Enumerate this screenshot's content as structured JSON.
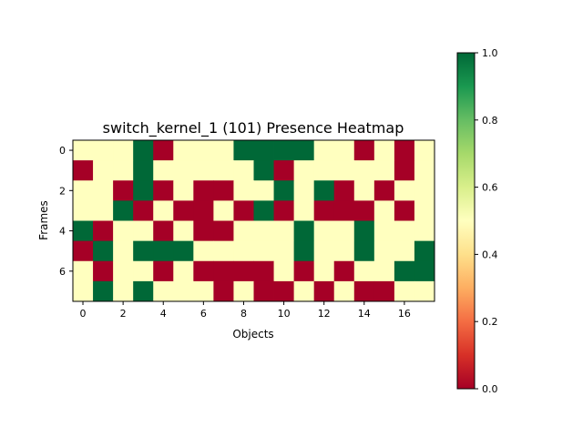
{
  "chart_data": {
    "type": "heatmap",
    "title": "switch_kernel_1 (101) Presence Heatmap",
    "xlabel": "Objects",
    "ylabel": "Frames",
    "x_ticks": [
      0,
      2,
      4,
      6,
      8,
      10,
      12,
      14,
      16
    ],
    "y_ticks": [
      0,
      2,
      4,
      6
    ],
    "colormap": "RdYlGn",
    "colorbar": {
      "range": [
        0.0,
        1.0
      ],
      "ticks": [
        "0.0",
        "0.2",
        "0.4",
        "0.6",
        "0.8",
        "1.0"
      ]
    },
    "colors": {
      "0": "#a50026",
      "0.5": "#ffffbf",
      "1": "#006837"
    },
    "values": [
      [
        0.5,
        0.5,
        0.5,
        1,
        0,
        0.5,
        0.5,
        0.5,
        1,
        1,
        1,
        1,
        0.5,
        0.5,
        0,
        0.5,
        0,
        0.5
      ],
      [
        0,
        0.5,
        0.5,
        1,
        0.5,
        0.5,
        0.5,
        0.5,
        0.5,
        1,
        0,
        0.5,
        0.5,
        0.5,
        0.5,
        0.5,
        0,
        0.5
      ],
      [
        0.5,
        0.5,
        0,
        1,
        0,
        0.5,
        0,
        0,
        0.5,
        0.5,
        1,
        0.5,
        1,
        0,
        0.5,
        0,
        0.5,
        0.5
      ],
      [
        0.5,
        0.5,
        1,
        0,
        0.5,
        0,
        0,
        0.5,
        0,
        1,
        0,
        0.5,
        0,
        0,
        0,
        0.5,
        0,
        0.5
      ],
      [
        1,
        0,
        0.5,
        0.5,
        0,
        0.5,
        0,
        0,
        0.5,
        0.5,
        0.5,
        1,
        0.5,
        0.5,
        1,
        0.5,
        0.5,
        0.5
      ],
      [
        0,
        1,
        0.5,
        1,
        1,
        1,
        0.5,
        0.5,
        0.5,
        0.5,
        0.5,
        1,
        0.5,
        0.5,
        1,
        0.5,
        0.5,
        1
      ],
      [
        0.5,
        0,
        0.5,
        0.5,
        0,
        0.5,
        0,
        0,
        0,
        0,
        0.5,
        0,
        0.5,
        0,
        0.5,
        0.5,
        1,
        1
      ],
      [
        0.5,
        1,
        0.5,
        1,
        0.5,
        0.5,
        0.5,
        0,
        0.5,
        0,
        0,
        0.5,
        0,
        0.5,
        0,
        0,
        0.5,
        0.5
      ]
    ]
  }
}
